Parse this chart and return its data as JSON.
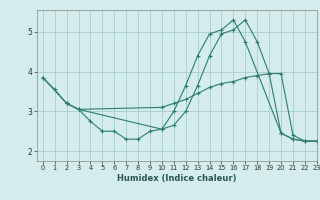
{
  "xlabel": "Humidex (Indice chaleur)",
  "ylabel": "",
  "background_color": "#d4ecec",
  "grid_color": "#a8cccc",
  "line_color": "#2d7d6e",
  "xlim": [
    -0.5,
    23
  ],
  "ylim": [
    1.75,
    5.55
  ],
  "xticks": [
    0,
    1,
    2,
    3,
    4,
    5,
    6,
    7,
    8,
    9,
    10,
    11,
    12,
    13,
    14,
    15,
    16,
    17,
    18,
    19,
    20,
    21,
    22,
    23
  ],
  "yticks": [
    2,
    3,
    4,
    5
  ],
  "lines": [
    {
      "x": [
        0,
        1,
        2,
        3,
        4,
        5,
        6,
        7,
        8,
        9,
        10,
        11,
        12,
        13,
        14,
        15,
        16,
        17,
        18,
        19,
        20,
        21,
        22,
        23
      ],
      "y": [
        3.85,
        3.55,
        3.2,
        3.05,
        2.75,
        2.5,
        2.5,
        2.3,
        2.3,
        2.5,
        2.55,
        2.65,
        3.0,
        3.65,
        4.4,
        4.95,
        5.05,
        5.3,
        4.75,
        3.95,
        2.45,
        2.3,
        2.25,
        2.25
      ]
    },
    {
      "x": [
        0,
        2,
        3,
        10,
        11,
        12,
        13,
        14,
        15,
        16,
        17,
        18,
        19,
        20,
        21,
        22,
        23
      ],
      "y": [
        3.85,
        3.2,
        3.05,
        3.1,
        3.2,
        3.3,
        3.45,
        3.6,
        3.7,
        3.75,
        3.85,
        3.9,
        3.95,
        3.95,
        2.4,
        2.25,
        2.25
      ]
    },
    {
      "x": [
        2,
        3,
        10,
        11,
        12,
        13,
        14,
        15,
        16,
        17,
        20,
        21,
        22,
        23
      ],
      "y": [
        3.2,
        3.05,
        2.55,
        3.0,
        3.65,
        4.4,
        4.95,
        5.05,
        5.3,
        4.75,
        2.45,
        2.3,
        2.25,
        2.25
      ]
    }
  ]
}
